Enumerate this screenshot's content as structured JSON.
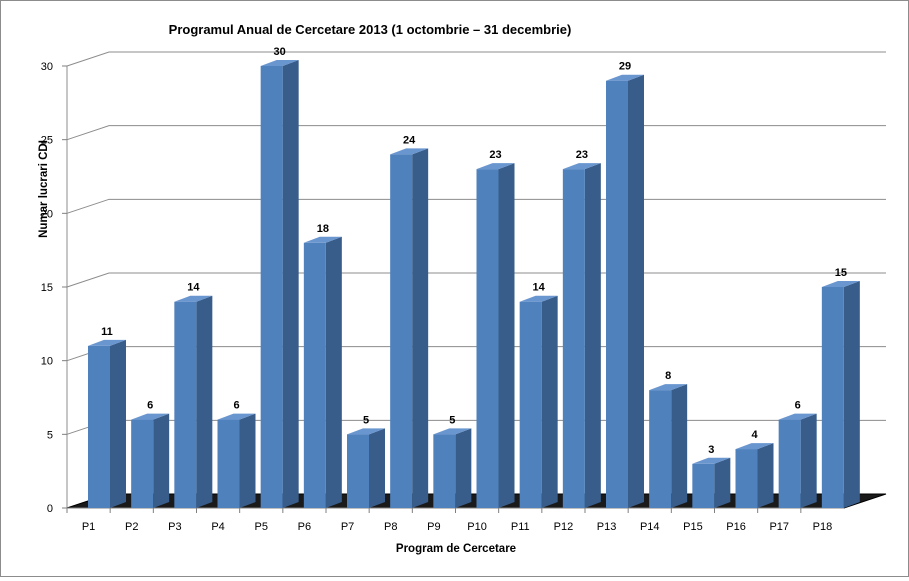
{
  "chart_data": {
    "type": "bar",
    "title": "Programul Anual de Cercetare 2013 (1 octombrie – 31 decembrie)",
    "xlabel": "Program de Cercetare",
    "ylabel": "Numar lucrari CDI",
    "categories": [
      "P1",
      "P2",
      "P3",
      "P4",
      "P5",
      "P6",
      "P7",
      "P8",
      "P9",
      "P10",
      "P11",
      "P12",
      "P13",
      "P14",
      "P15",
      "P16",
      "P17",
      "P18"
    ],
    "values": [
      11,
      6,
      14,
      6,
      30,
      18,
      5,
      24,
      5,
      23,
      14,
      23,
      29,
      8,
      3,
      4,
      6,
      15
    ],
    "data_labels": [
      "11",
      "6",
      "14",
      "6",
      "30",
      "18",
      "5",
      "24",
      "5",
      "23",
      "14",
      "23",
      "29",
      "8",
      "3",
      "4",
      "6",
      "15"
    ],
    "yticks": [
      0,
      5,
      10,
      15,
      20,
      25,
      30
    ],
    "ytick_labels": [
      "0",
      "5",
      "10",
      "15",
      "20",
      "25",
      "30"
    ],
    "ylim": [
      0,
      30
    ],
    "style": "3d-column",
    "grid": true,
    "legend": "none",
    "colors": {
      "bar_front": "#4F81BD",
      "bar_side": "#385D8A",
      "bar_top": "#6A96CF",
      "floor": "#1a1a1a",
      "grid": "#8c8c8c"
    }
  }
}
